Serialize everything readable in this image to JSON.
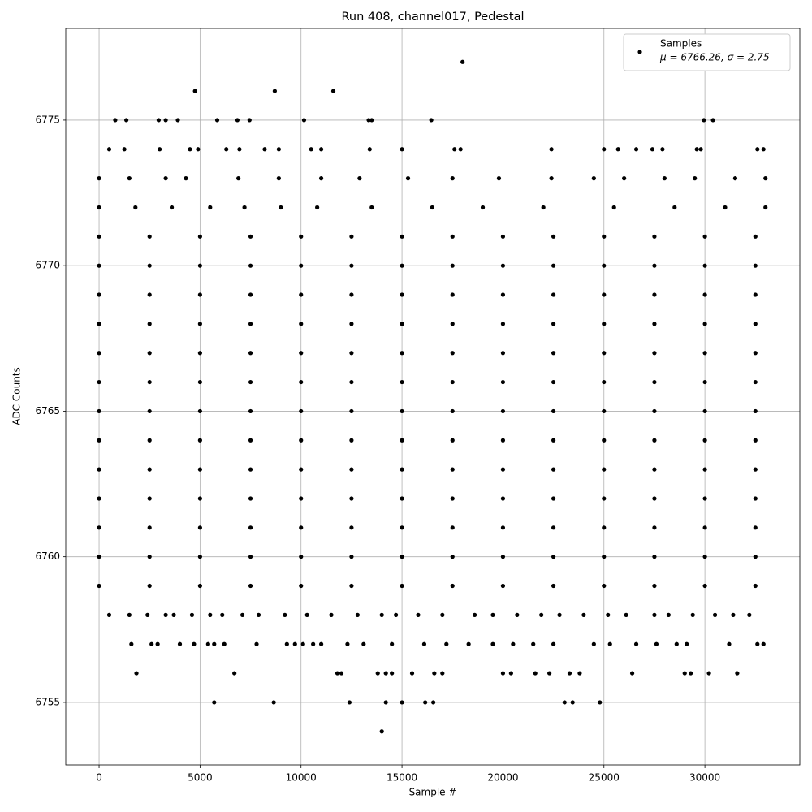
{
  "chart_data": {
    "type": "scatter",
    "title": "Run 408, channel017, Pedestal",
    "xlabel": "Sample #",
    "ylabel": "ADC Counts",
    "annotation": "μ = 6766.26, σ = 2.75",
    "legend": "upper right",
    "grid": true,
    "xlim": [
      -1650,
      34700
    ],
    "ylim": [
      6752.85,
      6778.15
    ],
    "xticks": [
      0,
      5000,
      10000,
      15000,
      20000,
      25000,
      30000
    ],
    "yticks": [
      6755,
      6760,
      6765,
      6770,
      6775
    ],
    "series": [
      {
        "name": "Samples",
        "color": "#000000",
        "x": [
          18000,
          4750,
          8700,
          11600,
          800,
          1350,
          2950,
          3300,
          3900,
          5850,
          6850,
          7450,
          10150,
          13350,
          13500,
          16450,
          29950,
          30400,
          500,
          1250,
          3000,
          4500,
          4900,
          6300,
          6950,
          8200,
          8900,
          10500,
          11000,
          13400,
          15000,
          17600,
          17900,
          22400,
          25000,
          25700,
          26600,
          27400,
          27900,
          29600,
          29800,
          32600,
          32900,
          0,
          1500,
          3300,
          4300,
          6900,
          8900,
          11000,
          12900,
          15300,
          17500,
          19800,
          22400,
          24500,
          26000,
          28000,
          29500,
          31500,
          33000,
          0,
          1800,
          3600,
          5500,
          7200,
          9000,
          10800,
          13500,
          16500,
          19000,
          22000,
          25500,
          28500,
          31000,
          33000,
          0,
          2500,
          5000,
          7500,
          10000,
          12500,
          15000,
          17500,
          20000,
          22500,
          25000,
          27500,
          30000,
          32500,
          0,
          2500,
          5000,
          7500,
          10000,
          12500,
          15000,
          17500,
          20000,
          22500,
          25000,
          27500,
          30000,
          32500,
          0,
          2500,
          5000,
          7500,
          10000,
          12500,
          15000,
          17500,
          20000,
          22500,
          25000,
          27500,
          30000,
          32500,
          0,
          2500,
          5000,
          7500,
          10000,
          12500,
          15000,
          17500,
          20000,
          22500,
          25000,
          27500,
          30000,
          32500,
          0,
          2500,
          5000,
          7500,
          10000,
          12500,
          15000,
          17500,
          20000,
          22500,
          25000,
          27500,
          30000,
          32500,
          0,
          2500,
          5000,
          7500,
          10000,
          12500,
          15000,
          17500,
          20000,
          22500,
          25000,
          27500,
          30000,
          32500,
          0,
          2500,
          5000,
          7500,
          10000,
          12500,
          15000,
          17500,
          20000,
          22500,
          25000,
          27500,
          30000,
          32500,
          0,
          2500,
          5000,
          7500,
          10000,
          12500,
          15000,
          17500,
          20000,
          22500,
          25000,
          27500,
          30000,
          32500,
          0,
          2500,
          5000,
          7500,
          10000,
          12500,
          15000,
          17500,
          20000,
          22500,
          25000,
          27500,
          30000,
          32500,
          0,
          2500,
          5000,
          7500,
          10000,
          12500,
          15000,
          17500,
          20000,
          22500,
          25000,
          27500,
          30000,
          32500,
          0,
          2500,
          5000,
          7500,
          10000,
          12500,
          15000,
          17500,
          20000,
          22500,
          25000,
          27500,
          30000,
          32500,
          0,
          2500,
          5000,
          7500,
          10000,
          12500,
          15000,
          17500,
          20000,
          22500,
          25000,
          27500,
          30000,
          32500,
          0,
          2500,
          5000,
          7500,
          10000,
          12500,
          15000,
          17500,
          20000,
          22500,
          25000,
          27500,
          30000,
          32500,
          500,
          1500,
          2400,
          3300,
          3700,
          4600,
          5500,
          6100,
          7100,
          7900,
          9200,
          10300,
          11500,
          12800,
          14000,
          14700,
          15800,
          17000,
          18600,
          19500,
          20700,
          21900,
          22800,
          24000,
          25200,
          26100,
          27500,
          28200,
          29400,
          30500,
          31400,
          32200,
          1600,
          2600,
          2900,
          4000,
          4700,
          5400,
          5700,
          6200,
          7800,
          9300,
          9700,
          10100,
          10600,
          11000,
          12300,
          13100,
          14500,
          16100,
          17200,
          18300,
          19500,
          20500,
          21500,
          22500,
          24500,
          25300,
          26600,
          27600,
          28600,
          29100,
          31200,
          32600,
          32900,
          1850,
          6700,
          11800,
          12000,
          13800,
          14200,
          14500,
          15500,
          16600,
          17000,
          20000,
          20400,
          21600,
          22300,
          23300,
          23800,
          26400,
          29000,
          29300,
          30200,
          31600,
          5700,
          8650,
          12400,
          14200,
          15000,
          16150,
          16550,
          23050,
          23450,
          24800,
          14000
        ],
        "values": [
          6777,
          6776,
          6776,
          6776,
          6775,
          6775,
          6775,
          6775,
          6775,
          6775,
          6775,
          6775,
          6775,
          6775,
          6775,
          6775,
          6775,
          6775,
          6774,
          6774,
          6774,
          6774,
          6774,
          6774,
          6774,
          6774,
          6774,
          6774,
          6774,
          6774,
          6774,
          6774,
          6774,
          6774,
          6774,
          6774,
          6774,
          6774,
          6774,
          6774,
          6774,
          6774,
          6774,
          6773,
          6773,
          6773,
          6773,
          6773,
          6773,
          6773,
          6773,
          6773,
          6773,
          6773,
          6773,
          6773,
          6773,
          6773,
          6773,
          6773,
          6773,
          6772,
          6772,
          6772,
          6772,
          6772,
          6772,
          6772,
          6772,
          6772,
          6772,
          6772,
          6772,
          6772,
          6772,
          6772,
          6771,
          6771,
          6771,
          6771,
          6771,
          6771,
          6771,
          6771,
          6771,
          6771,
          6771,
          6771,
          6771,
          6771,
          6770,
          6770,
          6770,
          6770,
          6770,
          6770,
          6770,
          6770,
          6770,
          6770,
          6770,
          6770,
          6770,
          6770,
          6769,
          6769,
          6769,
          6769,
          6769,
          6769,
          6769,
          6769,
          6769,
          6769,
          6769,
          6769,
          6769,
          6769,
          6768,
          6768,
          6768,
          6768,
          6768,
          6768,
          6768,
          6768,
          6768,
          6768,
          6768,
          6768,
          6768,
          6768,
          6767,
          6767,
          6767,
          6767,
          6767,
          6767,
          6767,
          6767,
          6767,
          6767,
          6767,
          6767,
          6767,
          6767,
          6766,
          6766,
          6766,
          6766,
          6766,
          6766,
          6766,
          6766,
          6766,
          6766,
          6766,
          6766,
          6766,
          6766,
          6765,
          6765,
          6765,
          6765,
          6765,
          6765,
          6765,
          6765,
          6765,
          6765,
          6765,
          6765,
          6765,
          6765,
          6764,
          6764,
          6764,
          6764,
          6764,
          6764,
          6764,
          6764,
          6764,
          6764,
          6764,
          6764,
          6764,
          6764,
          6763,
          6763,
          6763,
          6763,
          6763,
          6763,
          6763,
          6763,
          6763,
          6763,
          6763,
          6763,
          6763,
          6763,
          6762,
          6762,
          6762,
          6762,
          6762,
          6762,
          6762,
          6762,
          6762,
          6762,
          6762,
          6762,
          6762,
          6762,
          6761,
          6761,
          6761,
          6761,
          6761,
          6761,
          6761,
          6761,
          6761,
          6761,
          6761,
          6761,
          6761,
          6761,
          6760,
          6760,
          6760,
          6760,
          6760,
          6760,
          6760,
          6760,
          6760,
          6760,
          6760,
          6760,
          6760,
          6760,
          6759,
          6759,
          6759,
          6759,
          6759,
          6759,
          6759,
          6759,
          6759,
          6759,
          6759,
          6759,
          6759,
          6759,
          6758,
          6758,
          6758,
          6758,
          6758,
          6758,
          6758,
          6758,
          6758,
          6758,
          6758,
          6758,
          6758,
          6758,
          6758,
          6758,
          6758,
          6758,
          6758,
          6758,
          6758,
          6758,
          6758,
          6758,
          6758,
          6758,
          6758,
          6758,
          6758,
          6758,
          6758,
          6758,
          6757,
          6757,
          6757,
          6757,
          6757,
          6757,
          6757,
          6757,
          6757,
          6757,
          6757,
          6757,
          6757,
          6757,
          6757,
          6757,
          6757,
          6757,
          6757,
          6757,
          6757,
          6757,
          6757,
          6757,
          6757,
          6757,
          6757,
          6757,
          6757,
          6757,
          6757,
          6757,
          6757,
          6756,
          6756,
          6756,
          6756,
          6756,
          6756,
          6756,
          6756,
          6756,
          6756,
          6756,
          6756,
          6756,
          6756,
          6756,
          6756,
          6756,
          6756,
          6756,
          6756,
          6756,
          6755,
          6755,
          6755,
          6755,
          6755,
          6755,
          6755,
          6755,
          6755,
          6755,
          6754
        ]
      }
    ]
  }
}
